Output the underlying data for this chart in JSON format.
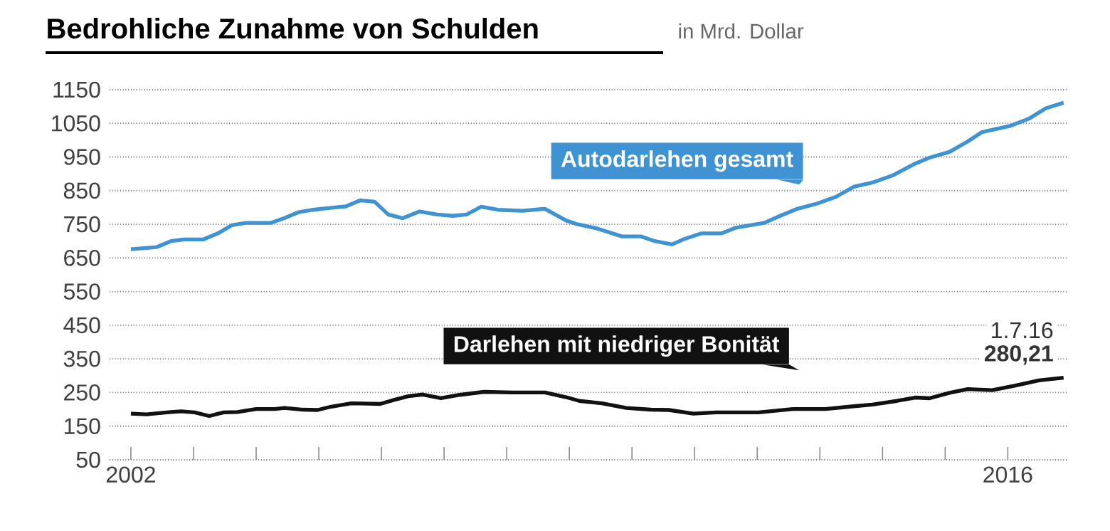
{
  "chart_data": {
    "type": "line",
    "title": "Bedrohliche Zunahme von Schulden",
    "subtitle": "in Mrd. Dollar",
    "xlim": [
      2001.66,
      2016.95
    ],
    "ylim": [
      50,
      1150
    ],
    "xticks": [
      {
        "value": 2002,
        "label": "2002"
      },
      {
        "value": 2003,
        "label": null
      },
      {
        "value": 2004,
        "label": null
      },
      {
        "value": 2005,
        "label": null
      },
      {
        "value": 2006,
        "label": null
      },
      {
        "value": 2007,
        "label": null
      },
      {
        "value": 2008,
        "label": null
      },
      {
        "value": 2009,
        "label": null
      },
      {
        "value": 2010,
        "label": null
      },
      {
        "value": 2011,
        "label": null
      },
      {
        "value": 2012,
        "label": null
      },
      {
        "value": 2013,
        "label": null
      },
      {
        "value": 2014,
        "label": null
      },
      {
        "value": 2015,
        "label": null
      },
      {
        "value": 2016,
        "label": "2016"
      }
    ],
    "yticks": [
      50,
      150,
      250,
      350,
      450,
      550,
      650,
      750,
      850,
      950,
      1050,
      1150
    ],
    "grid": "y",
    "legend": false,
    "marker": "none",
    "line_style": "solid",
    "annotations": [
      "1.7.16",
      "**280,21**"
    ],
    "series": [
      {
        "name": "Autodarlehen gesamt",
        "color": "#3f93d3",
        "x": [
          2002.0,
          2002.41,
          2002.64,
          2002.86,
          2003.16,
          2003.39,
          2003.61,
          2003.84,
          2004.23,
          2004.45,
          2004.68,
          2004.91,
          2005.2,
          2005.43,
          2005.66,
          2005.89,
          2006.11,
          2006.34,
          2006.61,
          2006.89,
          2007.14,
          2007.36,
          2007.59,
          2007.86,
          2008.25,
          2008.61,
          2008.95,
          2009.11,
          2009.45,
          2009.84,
          2010.14,
          2010.36,
          2010.64,
          2010.82,
          2011.11,
          2011.43,
          2011.66,
          2012.11,
          2012.34,
          2012.64,
          2012.93,
          2013.25,
          2013.55,
          2013.84,
          2014.16,
          2014.52,
          2014.75,
          2015.07,
          2015.36,
          2015.59,
          2016.05,
          2016.34,
          2016.61,
          2016.89
        ],
        "values": [
          676,
          682,
          700,
          705,
          705,
          723,
          747,
          754,
          754,
          768,
          786,
          793,
          799,
          803,
          821,
          817,
          779,
          768,
          788,
          779,
          775,
          779,
          802,
          793,
          790,
          796,
          761,
          751,
          737,
          714,
          714,
          700,
          690,
          705,
          723,
          723,
          740,
          754,
          773,
          796,
          810,
          831,
          862,
          874,
          895,
          930,
          948,
          965,
          996,
          1024,
          1043,
          1064,
          1095,
          1111
        ]
      },
      {
        "name": "Darlehen mit niedriger Bonität",
        "color": "#111111",
        "x": [
          2002.0,
          2002.25,
          2002.57,
          2002.8,
          2003.02,
          2003.25,
          2003.48,
          2003.7,
          2004.0,
          2004.3,
          2004.45,
          2004.75,
          2004.98,
          2005.2,
          2005.52,
          2005.98,
          2006.2,
          2006.43,
          2006.66,
          2006.95,
          2007.25,
          2007.64,
          2008.09,
          2008.61,
          2008.95,
          2009.16,
          2009.52,
          2009.91,
          2010.3,
          2010.59,
          2010.98,
          2011.34,
          2012.02,
          2012.57,
          2013.09,
          2013.48,
          2013.84,
          2014.23,
          2014.52,
          2014.75,
          2015.07,
          2015.36,
          2015.75,
          2016.11,
          2016.5,
          2016.89
        ],
        "values": [
          187,
          185,
          191,
          194,
          191,
          180,
          191,
          192,
          201,
          201,
          204,
          199,
          198,
          208,
          218,
          216,
          228,
          239,
          244,
          233,
          243,
          252,
          250,
          250,
          236,
          225,
          218,
          204,
          199,
          198,
          187,
          191,
          191,
          201,
          201,
          208,
          214,
          225,
          235,
          233,
          249,
          260,
          257,
          270,
          286,
          294
        ]
      }
    ]
  }
}
